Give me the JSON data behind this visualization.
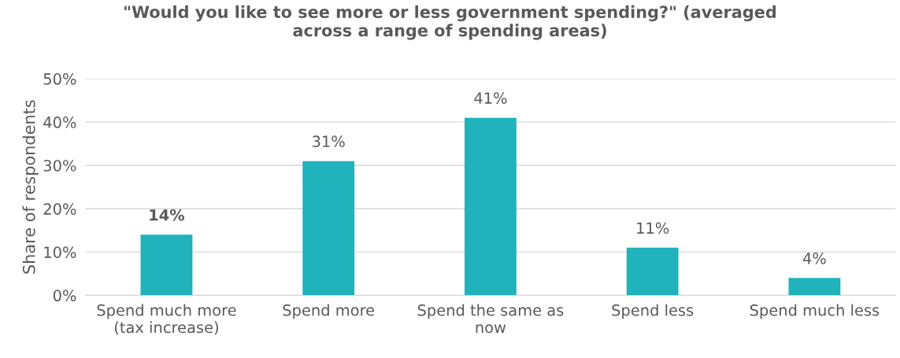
{
  "chart_data": {
    "type": "bar",
    "title": "\"Would you like to see more or less government spending?\" (averaged\nacross a range of spending areas)",
    "ylabel": "Share of respondents",
    "categories": [
      "Spend much more\n(tax increase)",
      "Spend more",
      "Spend the same as\nnow",
      "Spend less",
      "Spend much less"
    ],
    "values": [
      14,
      31,
      41,
      11,
      4
    ],
    "color": "#20b3bc",
    "data_labels": true,
    "value_labels": [
      "14%",
      "31%",
      "41%",
      "11%",
      "4%"
    ],
    "ylim": [
      0,
      50
    ],
    "yticks": [
      {
        "value": 0,
        "label": "0%"
      },
      {
        "value": 10,
        "label": "10%"
      },
      {
        "value": 20,
        "label": "20%"
      },
      {
        "value": 30,
        "label": "30%"
      },
      {
        "value": 40,
        "label": "40%"
      },
      {
        "value": 50,
        "label": "50%"
      }
    ],
    "grid": "y",
    "legend": false
  }
}
